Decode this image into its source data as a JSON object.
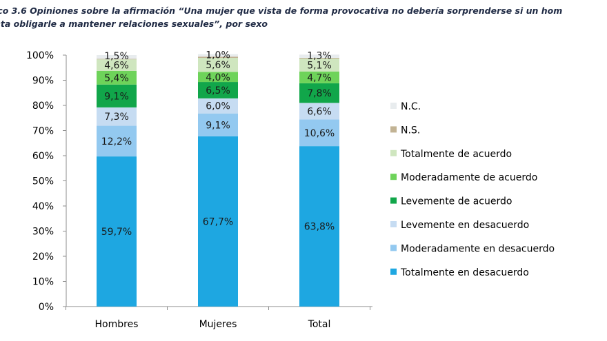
{
  "title_lines": [
    "ico 3.6 Opiniones sobre la afirmación “Una mujer que vista de forma provocativa no debería sorprenderse si un hom",
    "nta obligarle a mantener relaciones sexuales”, por sexo"
  ],
  "chart_data": {
    "type": "bar",
    "stacked": true,
    "percent_stacked": true,
    "title": "ico 3.6 Opiniones sobre la afirmación “Una mujer que vista de forma provocativa no debería sorprenderse si un hom nta obligarle a mantener relaciones sexuales”, por sexo",
    "categories": [
      "Hombres",
      "Mujeres",
      "Total"
    ],
    "ylim": [
      0,
      100
    ],
    "yticks": [
      "0%",
      "10%",
      "20%",
      "30%",
      "40%",
      "50%",
      "60%",
      "70%",
      "80%",
      "90%",
      "100%"
    ],
    "grid": false,
    "legend_position": "right",
    "series": [
      {
        "name": "Totalmente en desacuerdo",
        "color": "#1ea7e1",
        "values": [
          59.7,
          67.7,
          63.8
        ],
        "labels": [
          "59,7%",
          "67,7%",
          "63,8%"
        ]
      },
      {
        "name": "Moderadamente en desacuerdo",
        "color": "#93c9f0",
        "values": [
          12.2,
          9.1,
          10.6
        ],
        "labels": [
          "12,2%",
          "9,1%",
          "10,6%"
        ]
      },
      {
        "name": "Levemente en desacuerdo",
        "color": "#c6dcf2",
        "values": [
          7.3,
          6.0,
          6.6
        ],
        "labels": [
          "7,3%",
          "6,0%",
          "6,6%"
        ]
      },
      {
        "name": "Levemente de acuerdo",
        "color": "#11a64a",
        "values": [
          9.1,
          6.5,
          7.8
        ],
        "labels": [
          "9,1%",
          "6,5%",
          "7,8%"
        ]
      },
      {
        "name": "Moderadamente de acuerdo",
        "color": "#6ed35a",
        "values": [
          5.4,
          4.0,
          4.7
        ],
        "labels": [
          "5,4%",
          "4,0%",
          "4,7%"
        ]
      },
      {
        "name": "Totalmente de acuerdo",
        "color": "#cfe6bf",
        "values": [
          4.6,
          5.6,
          5.1
        ],
        "labels": [
          "4,6%",
          "5,6%",
          "5,1%"
        ]
      },
      {
        "name": "N.S.",
        "color": "#c2b394",
        "values": [
          0.2,
          0.5,
          0.3
        ],
        "labels": [
          "",
          "",
          ""
        ]
      },
      {
        "name": "N.C.",
        "color": "#e8ecee",
        "values": [
          1.5,
          1.0,
          1.3
        ],
        "labels": [
          "1,5%",
          "1,0%",
          "1,3%"
        ]
      }
    ],
    "legend_order": [
      "N.C.",
      "N.S.",
      "Totalmente de acuerdo",
      "Moderadamente de acuerdo",
      "Levemente de acuerdo",
      "Levemente en desacuerdo",
      "Moderadamente en desacuerdo",
      "Totalmente en desacuerdo"
    ]
  }
}
